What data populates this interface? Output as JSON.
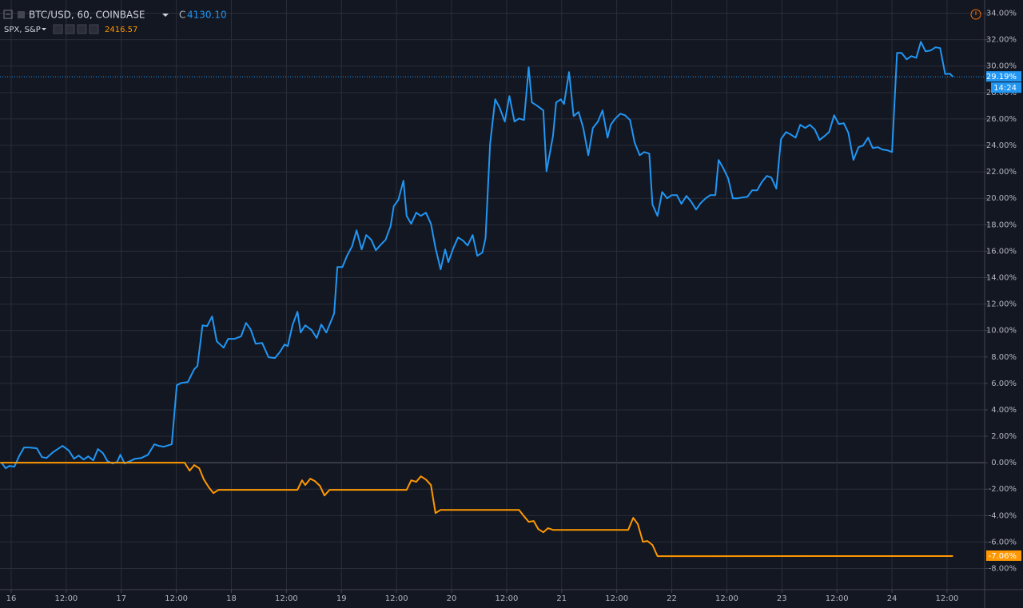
{
  "chart_data": {
    "type": "line",
    "xlim": [
      -2.44,
      212.2
    ],
    "xticks": [
      {
        "value": 0,
        "label": "16"
      },
      {
        "value": 12,
        "label": "12:00"
      },
      {
        "value": 24,
        "label": "17"
      },
      {
        "value": 36,
        "label": "12:00"
      },
      {
        "value": 48,
        "label": "18"
      },
      {
        "value": 60,
        "label": "12:00"
      },
      {
        "value": 72,
        "label": "19"
      },
      {
        "value": 84,
        "label": "12:00"
      },
      {
        "value": 96,
        "label": "20"
      },
      {
        "value": 108,
        "label": "12:00"
      },
      {
        "value": 120,
        "label": "21"
      },
      {
        "value": 132,
        "label": "12:00"
      },
      {
        "value": 144,
        "label": "22"
      },
      {
        "value": 156,
        "label": "12:00"
      },
      {
        "value": 168,
        "label": "23"
      },
      {
        "value": 180,
        "label": "12:00"
      },
      {
        "value": 192,
        "label": "24"
      },
      {
        "value": 204,
        "label": "12:00"
      }
    ],
    "ylim": [
      -9.6,
      35
    ],
    "yticks": [
      {
        "value": 34,
        "label": "34.00%"
      },
      {
        "value": 32,
        "label": "32.00%"
      },
      {
        "value": 30,
        "label": "30.00%"
      },
      {
        "value": 28,
        "label": "28.00%"
      },
      {
        "value": 26,
        "label": "26.00%"
      },
      {
        "value": 24,
        "label": "24.00%"
      },
      {
        "value": 22,
        "label": "22.00%"
      },
      {
        "value": 20,
        "label": "20.00%"
      },
      {
        "value": 18,
        "label": "18.00%"
      },
      {
        "value": 16,
        "label": "16.00%"
      },
      {
        "value": 14,
        "label": "14.00%"
      },
      {
        "value": 12,
        "label": "12.00%"
      },
      {
        "value": 10,
        "label": "10.00%"
      },
      {
        "value": 8,
        "label": "8.00%"
      },
      {
        "value": 6,
        "label": "6.00%"
      },
      {
        "value": 4,
        "label": "4.00%"
      },
      {
        "value": 2,
        "label": "2.00%"
      },
      {
        "value": 0,
        "label": "0.00%"
      },
      {
        "value": -2,
        "label": "-2.00%"
      },
      {
        "value": -4,
        "label": "-4.00%"
      },
      {
        "value": -6,
        "label": "-6.00%"
      },
      {
        "value": -8,
        "label": "-8.00%"
      }
    ],
    "grid": true,
    "close_prefix": "C",
    "countdown": "14:24",
    "series": [
      {
        "name": "BTC/USD, 60, COINBASE",
        "color": "#2196f3",
        "last_price": "4130.10",
        "last_label": "29.19%",
        "x": [
          -2.1,
          -1.2,
          -0.4,
          0.7,
          1.8,
          2.8,
          3.9,
          5.6,
          6.7,
          7.7,
          9.1,
          11.2,
          12.6,
          13.7,
          14.7,
          15.8,
          16.8,
          17.9,
          18.9,
          20.0,
          21.0,
          22.1,
          23.1,
          23.8,
          24.7,
          25.9,
          27.0,
          28.4,
          29.8,
          31.2,
          32.2,
          33.3,
          35.0,
          36.1,
          37.1,
          38.5,
          39.9,
          40.6,
          41.7,
          42.7,
          43.8,
          44.8,
          46.3,
          47.3,
          48.7,
          50.1,
          51.2,
          52.2,
          53.3,
          54.7,
          56.1,
          57.5,
          58.5,
          59.6,
          60.3,
          61.3,
          62.4,
          63.1,
          64.1,
          65.5,
          66.6,
          67.6,
          68.7,
          69.7,
          70.4,
          71.1,
          72.2,
          73.2,
          74.3,
          75.3,
          76.4,
          77.4,
          78.5,
          79.5,
          80.6,
          81.6,
          82.7,
          83.4,
          84.4,
          85.5,
          86.2,
          87.2,
          88.3,
          89.3,
          90.4,
          91.5,
          92.5,
          93.6,
          94.6,
          95.3,
          96.4,
          97.4,
          98.5,
          99.5,
          100.6,
          101.6,
          102.7,
          103.4,
          104.4,
          105.5,
          106.5,
          107.6,
          108.6,
          109.7,
          110.7,
          111.8,
          112.8,
          113.5,
          114.6,
          116.0,
          116.7,
          118.1,
          118.8,
          119.8,
          120.5,
          121.6,
          122.6,
          123.7,
          124.7,
          125.8,
          126.8,
          127.9,
          128.9,
          130.0,
          130.7,
          131.7,
          132.8,
          133.8,
          134.9,
          135.9,
          137.0,
          138.0,
          139.1,
          139.8,
          140.9,
          141.9,
          143.0,
          144.0,
          145.1,
          146.1,
          147.2,
          148.2,
          149.3,
          150.3,
          151.4,
          152.4,
          153.5,
          154.2,
          155.2,
          156.3,
          157.3,
          158.4,
          159.4,
          160.5,
          161.5,
          162.6,
          163.6,
          164.7,
          165.7,
          166.8,
          167.8,
          168.9,
          169.9,
          171.0,
          172.0,
          173.1,
          174.1,
          175.2,
          176.2,
          177.3,
          178.3,
          179.4,
          180.4,
          181.5,
          182.5,
          183.6,
          184.7,
          185.7,
          186.8,
          187.8,
          188.9,
          189.9,
          191.0,
          192.0,
          193.1,
          194.1,
          195.2,
          196.2,
          197.3,
          198.3,
          199.3,
          200.4,
          201.5,
          202.5,
          203.6,
          204.6,
          205.3
        ],
        "values": [
          0,
          -0.42,
          -0.24,
          -0.3,
          0.54,
          1.15,
          1.15,
          1.09,
          0.42,
          0.36,
          0.79,
          1.27,
          0.91,
          0.3,
          0.54,
          0.24,
          0.48,
          0.18,
          1.03,
          0.73,
          0.12,
          -0.06,
          0.06,
          0.6,
          -0.06,
          0.12,
          0.3,
          0.36,
          0.6,
          1.39,
          1.27,
          1.21,
          1.39,
          5.86,
          6.04,
          6.1,
          7.07,
          7.31,
          10.39,
          10.33,
          11.06,
          9.18,
          8.7,
          9.37,
          9.37,
          9.55,
          10.57,
          10.09,
          9,
          9.06,
          7.98,
          7.92,
          8.34,
          8.94,
          8.82,
          10.39,
          11.42,
          9.85,
          10.39,
          10.03,
          9.43,
          10.45,
          9.85,
          10.69,
          11.3,
          14.8,
          14.8,
          15.65,
          16.37,
          17.58,
          16.13,
          17.22,
          16.86,
          16.07,
          16.5,
          16.86,
          17.89,
          19.4,
          19.88,
          21.33,
          18.67,
          18.07,
          18.91,
          18.67,
          18.91,
          18.07,
          16.25,
          14.62,
          16.13,
          15.17,
          16.25,
          17.04,
          16.8,
          16.43,
          17.22,
          15.65,
          15.89,
          16.98,
          24.11,
          27.49,
          26.83,
          25.8,
          27.73,
          25.8,
          26.04,
          25.92,
          29.91,
          27.25,
          27.01,
          26.65,
          22.05,
          24.71,
          27.25,
          27.49,
          27.13,
          29.55,
          26.22,
          26.53,
          25.32,
          23.26,
          25.32,
          25.8,
          26.65,
          24.59,
          25.56,
          26.04,
          26.4,
          26.28,
          25.92,
          24.23,
          23.26,
          23.5,
          23.38,
          19.52,
          18.67,
          20.48,
          20,
          20.24,
          20.24,
          19.58,
          20.18,
          19.76,
          19.15,
          19.64,
          20,
          20.24,
          20.24,
          22.9,
          22.3,
          21.51,
          20,
          20,
          20.06,
          20.12,
          20.6,
          20.6,
          21.21,
          21.69,
          21.57,
          20.73,
          24.47,
          25.01,
          24.83,
          24.59,
          25.56,
          25.32,
          25.56,
          25.2,
          24.41,
          24.71,
          25.01,
          26.28,
          25.62,
          25.68,
          24.95,
          22.9,
          23.87,
          23.99,
          24.59,
          23.81,
          23.87,
          23.69,
          23.63,
          23.5,
          31,
          31,
          30.51,
          30.75,
          30.63,
          31.84,
          31.12,
          31.18,
          31.42,
          31.36,
          29.4,
          29.43,
          29.19
        ]
      },
      {
        "name": "SPX, S&P",
        "color": "#ff9800",
        "last_price": "2416.57",
        "last_label": "-7.06%",
        "x": [
          -2.4,
          37.8,
          38.9,
          39.9,
          41.0,
          42.0,
          43.1,
          44.1,
          45.2,
          62.4,
          63.4,
          64.1,
          65.2,
          66.2,
          67.3,
          68.3,
          69.4,
          86.2,
          87.2,
          88.3,
          89.3,
          90.4,
          91.5,
          92.5,
          93.6,
          110.7,
          111.8,
          112.8,
          113.9,
          114.9,
          116.0,
          117.0,
          118.1,
          134.5,
          135.6,
          136.6,
          137.7,
          138.7,
          139.8,
          140.9,
          205.3
        ],
        "values": [
          0,
          0,
          -0.6,
          -0.18,
          -0.42,
          -1.27,
          -1.87,
          -2.3,
          -2.05,
          -2.05,
          -1.33,
          -1.69,
          -1.21,
          -1.39,
          -1.75,
          -2.48,
          -2.05,
          -2.05,
          -1.33,
          -1.45,
          -1.03,
          -1.27,
          -1.69,
          -3.81,
          -3.57,
          -3.57,
          -4.05,
          -4.47,
          -4.41,
          -5.02,
          -5.26,
          -4.95,
          -5.08,
          -5.08,
          -4.17,
          -4.65,
          -5.98,
          -5.92,
          -6.22,
          -7.07,
          -7.06
        ]
      }
    ]
  }
}
